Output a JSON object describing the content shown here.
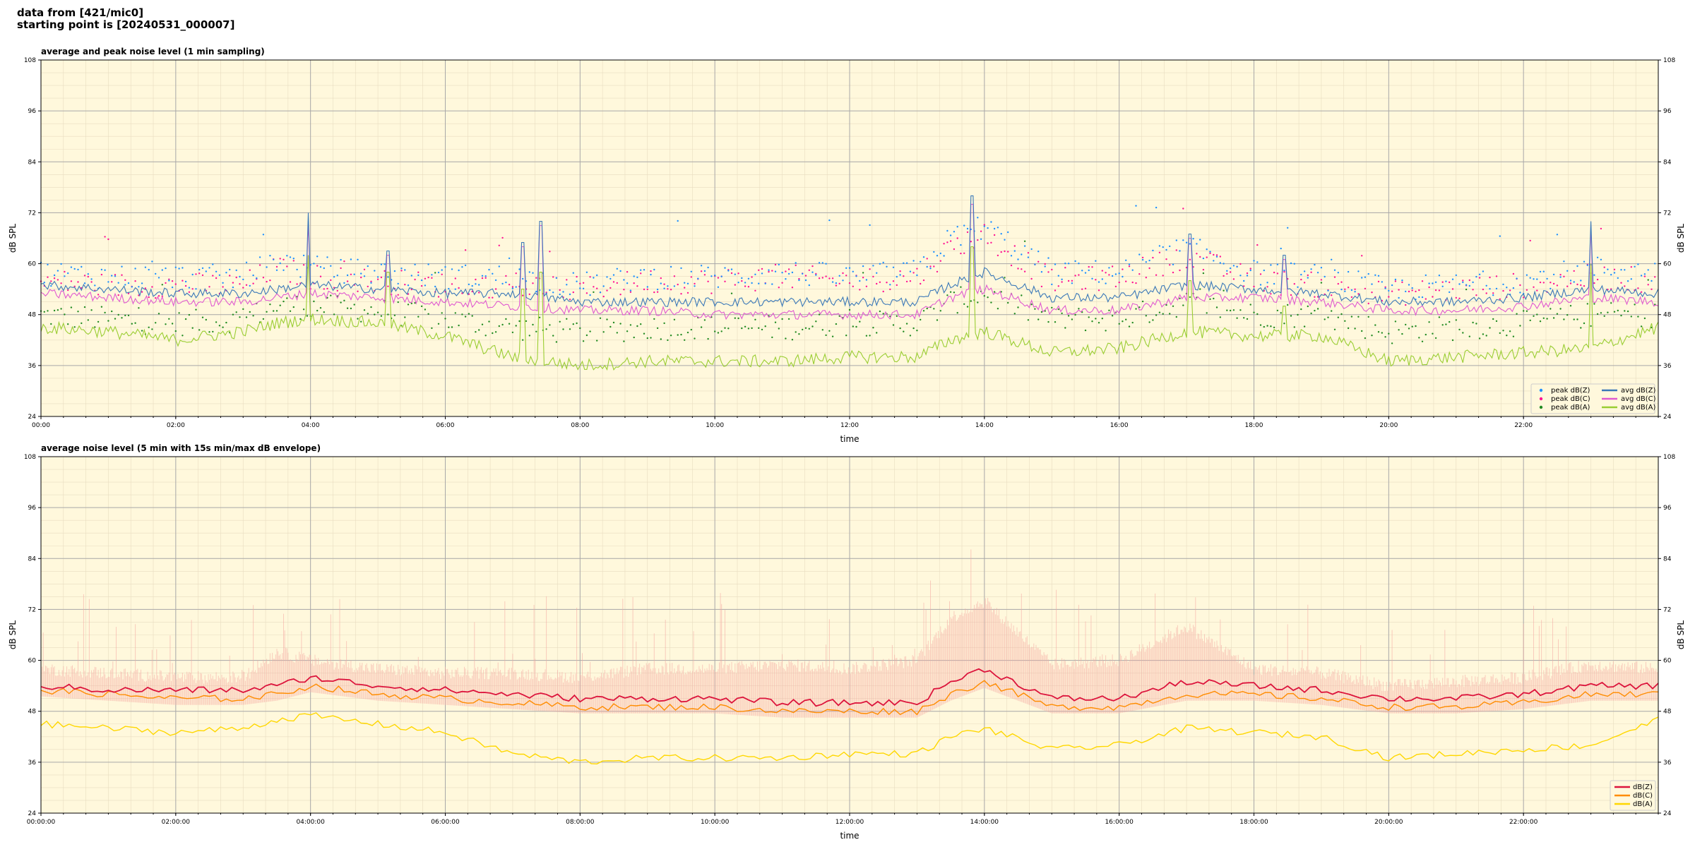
{
  "header": {
    "line1": "data from [421/mic0]",
    "line2": "starting point is [20240531_000007]"
  },
  "chart_data": [
    {
      "type": "line",
      "title": "average and peak noise level (1 min sampling)",
      "xlabel": "time",
      "ylabel": "dB SPL",
      "ylim": [
        24,
        108
      ],
      "yticks": [
        24,
        36,
        48,
        60,
        72,
        84,
        96,
        108
      ],
      "xlim_hours": [
        0,
        24
      ],
      "xticks": [
        {
          "h": 0,
          "label": "00:00"
        },
        {
          "h": 2,
          "label": "02:00"
        },
        {
          "h": 4,
          "label": "04:00"
        },
        {
          "h": 6,
          "label": "06:00"
        },
        {
          "h": 8,
          "label": "08:00"
        },
        {
          "h": 10,
          "label": "10:00"
        },
        {
          "h": 12,
          "label": "12:00"
        },
        {
          "h": 14,
          "label": "14:00"
        },
        {
          "h": 16,
          "label": "16:00"
        },
        {
          "h": 18,
          "label": "18:00"
        },
        {
          "h": 20,
          "label": "20:00"
        },
        {
          "h": 22,
          "label": "22:00"
        }
      ],
      "grid": true,
      "legend_position": "bottom-right",
      "x_hours": [
        0,
        1,
        2,
        3,
        3.5,
        4,
        5,
        6,
        7,
        8,
        9,
        10,
        11,
        12,
        13,
        13.5,
        14,
        15,
        16,
        17,
        18,
        19,
        20,
        21,
        22,
        23,
        24
      ],
      "series": [
        {
          "name": "avg dB(Z)",
          "color": "#3a78b8",
          "kind": "line",
          "values": [
            55,
            54,
            53,
            53,
            54,
            55,
            54,
            53,
            53,
            51,
            51,
            51,
            51,
            51,
            51,
            55,
            58,
            52,
            52,
            55,
            54,
            53,
            51,
            51,
            52,
            54,
            53
          ]
        },
        {
          "name": "avg dB(C)",
          "color": "#e05ad0",
          "kind": "line",
          "values": [
            53,
            52,
            51,
            51,
            52,
            53,
            52,
            51,
            50,
            49,
            49,
            48,
            48,
            48,
            48,
            52,
            54,
            49,
            49,
            52,
            52,
            51,
            49,
            49,
            50,
            52,
            51
          ]
        },
        {
          "name": "avg dB(A)",
          "color": "#9acd32",
          "kind": "line",
          "values": [
            45,
            44,
            42,
            44,
            46,
            47,
            46,
            43,
            38,
            36,
            37,
            37,
            37,
            38,
            38,
            42,
            44,
            39,
            40,
            44,
            43,
            43,
            37,
            38,
            39,
            40,
            45
          ]
        },
        {
          "name": "peak dB(Z)",
          "color": "#1e90ff",
          "kind": "scatter",
          "values": [
            57,
            56,
            56,
            56,
            60,
            58,
            57,
            56,
            56,
            54,
            56,
            56,
            57,
            56,
            57,
            65,
            68,
            57,
            57,
            63,
            57,
            56,
            53,
            54,
            55,
            58,
            57
          ]
        },
        {
          "name": "peak dB(C)",
          "color": "#ff1493",
          "kind": "scatter",
          "values": [
            55,
            54,
            54,
            54,
            58,
            56,
            55,
            54,
            54,
            53,
            55,
            55,
            56,
            55,
            56,
            63,
            66,
            55,
            56,
            61,
            55,
            54,
            52,
            53,
            54,
            56,
            55
          ]
        },
        {
          "name": "peak dB(A)",
          "color": "#228b22",
          "kind": "scatter",
          "values": [
            47,
            46,
            45,
            46,
            49,
            49,
            48,
            46,
            44,
            43,
            44,
            44,
            44,
            45,
            45,
            50,
            52,
            46,
            46,
            50,
            47,
            47,
            43,
            44,
            45,
            47,
            47
          ]
        }
      ],
      "spikes": [
        {
          "h": 3.96,
          "z": 72,
          "c": 70,
          "a": 62
        },
        {
          "h": 5.15,
          "z": 63,
          "c": 62,
          "a": 58
        },
        {
          "h": 7.15,
          "z": 65,
          "c": 64,
          "a": 54
        },
        {
          "h": 7.42,
          "z": 70,
          "c": 69,
          "a": 58
        },
        {
          "h": 13.82,
          "z": 76,
          "c": 74,
          "a": 64
        },
        {
          "h": 17.05,
          "z": 67,
          "c": 66,
          "a": 56
        },
        {
          "h": 18.45,
          "z": 62,
          "c": 61,
          "a": 50
        },
        {
          "h": 23.0,
          "z": 70,
          "c": 69,
          "a": 60
        }
      ]
    },
    {
      "type": "line",
      "title": "average noise level (5 min with 15s min/max dB envelope)",
      "xlabel": "time",
      "ylabel": "dB SPL",
      "ylim": [
        24,
        108
      ],
      "yticks": [
        24,
        36,
        48,
        60,
        72,
        84,
        96,
        108
      ],
      "xlim_hours": [
        0,
        24
      ],
      "xticks": [
        {
          "h": 0,
          "label": "00:00:00"
        },
        {
          "h": 2,
          "label": "02:00:00"
        },
        {
          "h": 4,
          "label": "04:00:00"
        },
        {
          "h": 6,
          "label": "06:00:00"
        },
        {
          "h": 8,
          "label": "08:00:00"
        },
        {
          "h": 10,
          "label": "10:00:00"
        },
        {
          "h": 12,
          "label": "12:00:00"
        },
        {
          "h": 14,
          "label": "14:00:00"
        },
        {
          "h": 16,
          "label": "16:00:00"
        },
        {
          "h": 18,
          "label": "18:00:00"
        },
        {
          "h": 20,
          "label": "20:00:00"
        },
        {
          "h": 22,
          "label": "22:00:00"
        }
      ],
      "grid": true,
      "legend_position": "bottom-right",
      "x_hours": [
        0,
        1,
        2,
        3,
        3.5,
        4,
        5,
        6,
        7,
        8,
        9,
        10,
        11,
        12,
        13,
        13.5,
        14,
        15,
        16,
        17,
        18,
        19,
        20,
        21,
        22,
        23,
        24
      ],
      "series": [
        {
          "name": "dB(Z)",
          "color": "#dc143c",
          "kind": "line",
          "values": [
            54,
            53,
            53,
            53,
            54,
            56,
            54,
            53,
            52,
            51,
            51,
            51,
            50,
            50,
            50,
            55,
            58,
            51,
            51,
            55,
            54,
            53,
            51,
            51,
            52,
            54,
            54
          ]
        },
        {
          "name": "dB(C)",
          "color": "#ff8c00",
          "kind": "line",
          "values": [
            53,
            52,
            51,
            51,
            52,
            54,
            52,
            51,
            50,
            49,
            49,
            49,
            48,
            48,
            48,
            52,
            55,
            49,
            49,
            52,
            52,
            51,
            49,
            49,
            50,
            52,
            52
          ]
        },
        {
          "name": "dB(A)",
          "color": "#ffd700",
          "kind": "line",
          "values": [
            45,
            44,
            43,
            44,
            46,
            47,
            45,
            43,
            38,
            36,
            37,
            37,
            37,
            38,
            38,
            42,
            44,
            39,
            40,
            44,
            43,
            42,
            37,
            38,
            39,
            40,
            46
          ]
        },
        {
          "name": "envelope max",
          "color": "#f4a6a0",
          "kind": "band",
          "values": [
            58,
            57,
            56,
            56,
            62,
            60,
            58,
            57,
            57,
            56,
            58,
            58,
            59,
            58,
            60,
            70,
            74,
            59,
            60,
            68,
            58,
            57,
            54,
            55,
            56,
            59,
            58
          ]
        }
      ]
    }
  ]
}
